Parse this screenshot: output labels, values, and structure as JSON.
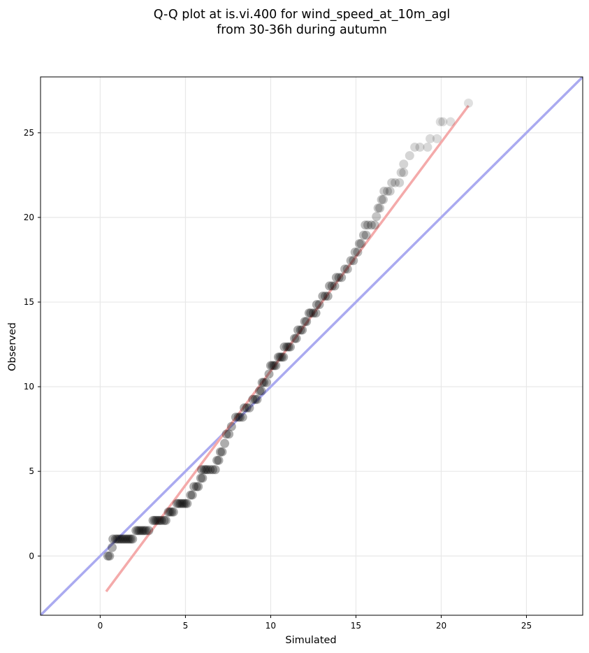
{
  "chart_data": {
    "type": "scatter",
    "title": [
      "Q-Q plot at is.vi.400 for wind_speed_at_10m_agl",
      "from 30-36h during autumn"
    ],
    "xlabel": "Simulated",
    "ylabel": "Observed",
    "xlim": [
      -3.5,
      28.3
    ],
    "ylim": [
      -3.5,
      28.3
    ],
    "xticks": [
      0,
      5,
      10,
      15,
      20,
      25
    ],
    "yticks": [
      0,
      5,
      10,
      15,
      20,
      25
    ],
    "grid": true,
    "reference_line": {
      "kind": "identity",
      "color": "#aaaaf0"
    },
    "fit_line": {
      "x": [
        0.35,
        21.6
      ],
      "y": [
        -2.1,
        26.6
      ],
      "color": "#f4aaaa"
    },
    "point_color": "#000000",
    "points": [
      [
        0.45,
        0.0
      ],
      [
        0.55,
        0.0
      ],
      [
        0.7,
        0.5
      ],
      [
        0.75,
        1.0
      ],
      [
        0.9,
        1.0
      ],
      [
        1.0,
        1.0
      ],
      [
        1.1,
        1.0
      ],
      [
        1.2,
        1.0
      ],
      [
        1.3,
        1.0
      ],
      [
        1.4,
        1.0
      ],
      [
        1.5,
        1.0
      ],
      [
        1.6,
        1.0
      ],
      [
        1.7,
        1.0
      ],
      [
        1.8,
        1.0
      ],
      [
        1.9,
        1.0
      ],
      [
        2.1,
        1.5
      ],
      [
        2.2,
        1.5
      ],
      [
        2.3,
        1.5
      ],
      [
        2.4,
        1.5
      ],
      [
        2.5,
        1.5
      ],
      [
        2.6,
        1.5
      ],
      [
        2.7,
        1.5
      ],
      [
        2.85,
        1.5
      ],
      [
        3.1,
        2.1
      ],
      [
        3.2,
        2.1
      ],
      [
        3.3,
        2.1
      ],
      [
        3.4,
        2.1
      ],
      [
        3.5,
        2.1
      ],
      [
        3.6,
        2.1
      ],
      [
        3.75,
        2.1
      ],
      [
        3.85,
        2.1
      ],
      [
        4.0,
        2.6
      ],
      [
        4.1,
        2.6
      ],
      [
        4.2,
        2.6
      ],
      [
        4.3,
        2.6
      ],
      [
        4.5,
        3.1
      ],
      [
        4.6,
        3.1
      ],
      [
        4.7,
        3.1
      ],
      [
        4.8,
        3.1
      ],
      [
        4.9,
        3.1
      ],
      [
        5.0,
        3.1
      ],
      [
        5.1,
        3.1
      ],
      [
        5.3,
        3.6
      ],
      [
        5.4,
        3.6
      ],
      [
        5.5,
        4.1
      ],
      [
        5.65,
        4.1
      ],
      [
        5.75,
        4.1
      ],
      [
        5.9,
        4.6
      ],
      [
        6.0,
        4.6
      ],
      [
        5.95,
        5.1
      ],
      [
        6.1,
        5.1
      ],
      [
        6.2,
        5.1
      ],
      [
        6.3,
        5.1
      ],
      [
        6.45,
        5.1
      ],
      [
        6.6,
        5.1
      ],
      [
        6.75,
        5.1
      ],
      [
        6.85,
        5.65
      ],
      [
        6.95,
        5.65
      ],
      [
        7.05,
        6.15
      ],
      [
        7.15,
        6.15
      ],
      [
        7.3,
        6.65
      ],
      [
        7.4,
        7.2
      ],
      [
        7.55,
        7.2
      ],
      [
        7.7,
        7.65
      ],
      [
        7.95,
        8.2
      ],
      [
        8.1,
        8.2
      ],
      [
        8.2,
        8.2
      ],
      [
        8.35,
        8.2
      ],
      [
        8.45,
        8.75
      ],
      [
        8.6,
        8.75
      ],
      [
        8.75,
        8.75
      ],
      [
        8.95,
        9.25
      ],
      [
        9.1,
        9.25
      ],
      [
        9.2,
        9.25
      ],
      [
        9.35,
        9.75
      ],
      [
        9.45,
        9.75
      ],
      [
        9.5,
        10.25
      ],
      [
        9.6,
        10.25
      ],
      [
        9.75,
        10.25
      ],
      [
        9.9,
        10.75
      ],
      [
        10.0,
        11.25
      ],
      [
        10.1,
        11.25
      ],
      [
        10.2,
        11.25
      ],
      [
        10.3,
        11.25
      ],
      [
        10.45,
        11.75
      ],
      [
        10.55,
        11.75
      ],
      [
        10.65,
        11.75
      ],
      [
        10.75,
        11.75
      ],
      [
        10.8,
        12.35
      ],
      [
        10.95,
        12.35
      ],
      [
        11.05,
        12.35
      ],
      [
        11.15,
        12.35
      ],
      [
        11.4,
        12.85
      ],
      [
        11.5,
        12.85
      ],
      [
        11.6,
        13.35
      ],
      [
        11.75,
        13.35
      ],
      [
        11.85,
        13.35
      ],
      [
        12.0,
        13.85
      ],
      [
        12.1,
        13.85
      ],
      [
        12.25,
        14.35
      ],
      [
        12.35,
        14.35
      ],
      [
        12.5,
        14.35
      ],
      [
        12.65,
        14.35
      ],
      [
        12.7,
        14.85
      ],
      [
        12.85,
        14.85
      ],
      [
        13.05,
        15.35
      ],
      [
        13.2,
        15.35
      ],
      [
        13.35,
        15.35
      ],
      [
        13.45,
        15.95
      ],
      [
        13.6,
        15.95
      ],
      [
        13.75,
        15.95
      ],
      [
        13.85,
        16.45
      ],
      [
        14.0,
        16.45
      ],
      [
        14.15,
        16.45
      ],
      [
        14.35,
        16.95
      ],
      [
        14.5,
        16.95
      ],
      [
        14.7,
        17.45
      ],
      [
        14.85,
        17.45
      ],
      [
        14.95,
        17.95
      ],
      [
        15.1,
        17.95
      ],
      [
        15.2,
        18.45
      ],
      [
        15.3,
        18.45
      ],
      [
        15.45,
        18.95
      ],
      [
        15.6,
        18.95
      ],
      [
        15.55,
        19.55
      ],
      [
        15.7,
        19.55
      ],
      [
        15.9,
        19.55
      ],
      [
        16.1,
        19.55
      ],
      [
        16.2,
        20.05
      ],
      [
        16.3,
        20.55
      ],
      [
        16.4,
        20.55
      ],
      [
        16.5,
        21.05
      ],
      [
        16.6,
        21.05
      ],
      [
        16.65,
        21.55
      ],
      [
        16.85,
        21.55
      ],
      [
        17.0,
        21.55
      ],
      [
        17.1,
        22.05
      ],
      [
        17.3,
        22.05
      ],
      [
        17.55,
        22.05
      ],
      [
        17.65,
        22.65
      ],
      [
        17.8,
        22.65
      ],
      [
        17.8,
        23.15
      ],
      [
        18.15,
        23.65
      ],
      [
        18.45,
        24.15
      ],
      [
        18.75,
        24.15
      ],
      [
        19.2,
        24.15
      ],
      [
        19.35,
        24.65
      ],
      [
        19.75,
        24.65
      ],
      [
        19.95,
        25.65
      ],
      [
        20.1,
        25.65
      ],
      [
        20.55,
        25.65
      ],
      [
        21.6,
        26.75
      ]
    ]
  }
}
